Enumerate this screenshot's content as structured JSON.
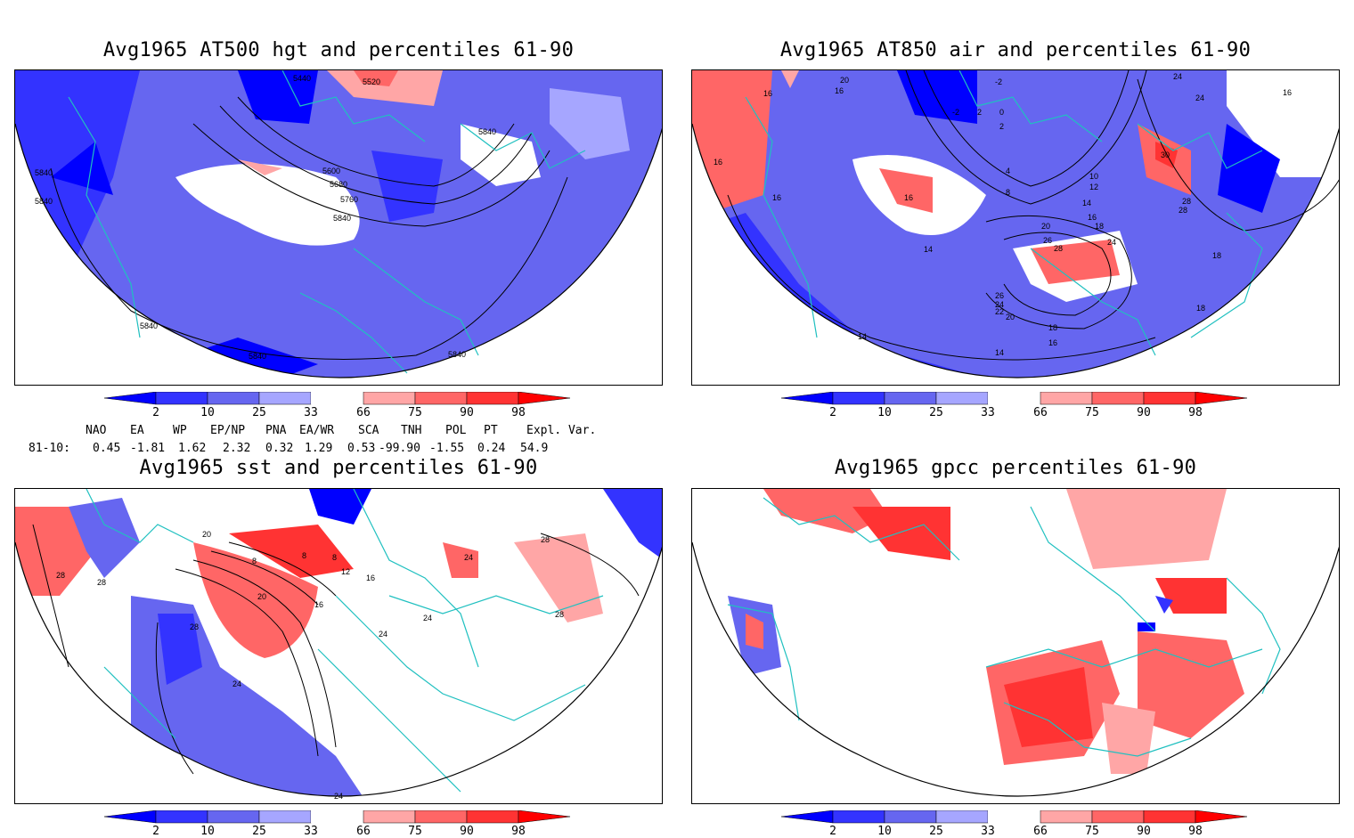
{
  "panels": [
    {
      "title": "Avg1965 AT500 hgt and percentiles 61-90",
      "contour_labels": [
        "5440",
        "5520",
        "5840",
        "5600",
        "5680",
        "5760",
        "5840",
        "5840",
        "5840",
        "5840",
        "5840",
        "5840"
      ]
    },
    {
      "title": "Avg1965 AT850 air and percentiles 61-90",
      "contour_labels": [
        "20",
        "16",
        "-2",
        "-2",
        "2",
        "0",
        "2",
        "24",
        "24",
        "16",
        "16",
        "16",
        "4",
        "8",
        "10",
        "12",
        "30",
        "28",
        "28",
        "16",
        "16",
        "14",
        "14",
        "16",
        "18",
        "20",
        "24",
        "26",
        "28",
        "26",
        "24",
        "22",
        "20",
        "18",
        "16",
        "18",
        "14",
        "14",
        "18"
      ]
    },
    {
      "title": "Avg1965 sst and percentiles 61-90",
      "contour_labels": [
        "20",
        "28",
        "28",
        "8",
        "8",
        "8",
        "12",
        "16",
        "16",
        "20",
        "24",
        "24",
        "24",
        "28",
        "28",
        "28",
        "24",
        "24"
      ]
    },
    {
      "title": "Avg1965 gpcc percentiles 61-90",
      "contour_labels": []
    }
  ],
  "colorbar": {
    "ticks": [
      "2",
      "10",
      "25",
      "33",
      "66",
      "75",
      "90",
      "98"
    ],
    "colors": {
      "below_2": "#0000ff",
      "2_10": "#3333ff",
      "10_25": "#6666f0",
      "25_33": "#a6a6ff",
      "33_66": "#ffffff",
      "66_75": "#ffa6a6",
      "75_90": "#ff6666",
      "90_98": "#ff3333",
      "above_98": "#ff0000"
    }
  },
  "indices": {
    "headers": [
      "NAO",
      "EA",
      "WP",
      "EP/NP",
      "PNA",
      "EA/WR",
      "SCA",
      "TNH",
      "POL",
      "PT",
      "Expl. Var."
    ],
    "row_label": "81-10:",
    "values": [
      "0.45",
      "-1.81",
      "1.62",
      "2.32",
      "0.32",
      "1.29",
      "0.53",
      "-99.90",
      "-1.55",
      "0.24",
      "54.9"
    ]
  },
  "colors": {
    "coastline": "#20c0c0",
    "contour": "#000000",
    "frame": "#000000"
  }
}
